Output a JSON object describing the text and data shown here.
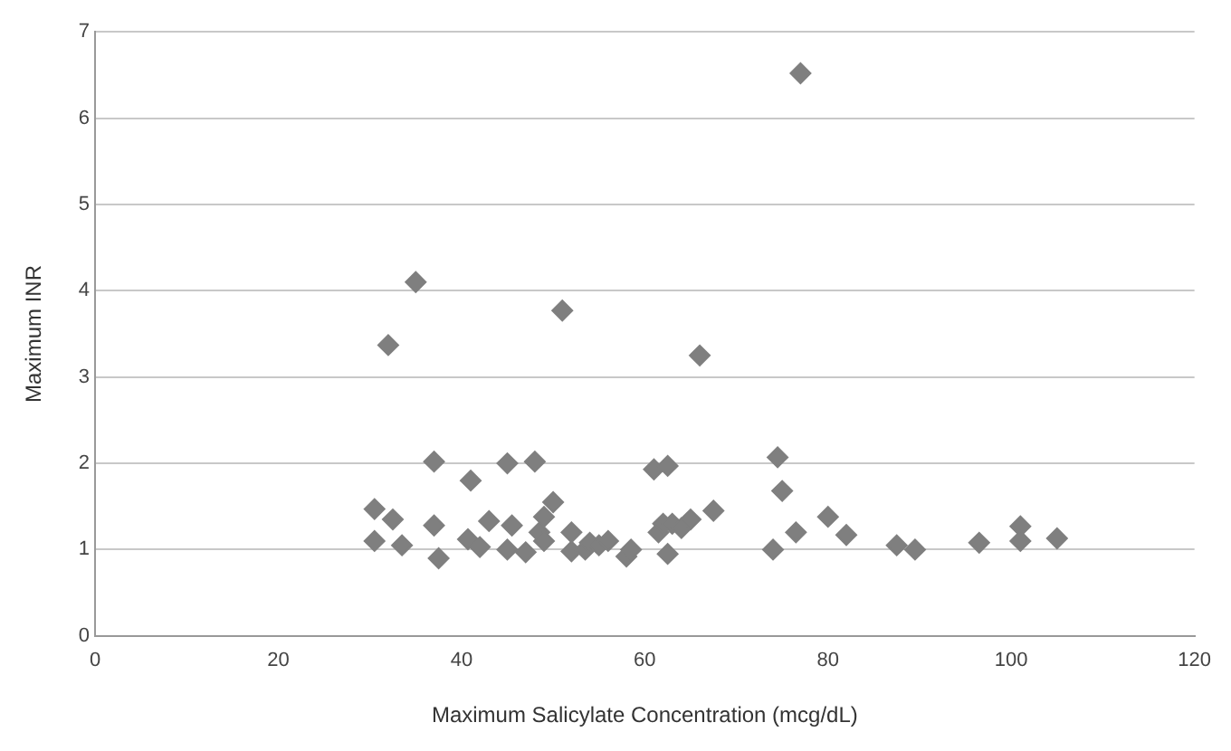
{
  "chart_data": {
    "type": "scatter",
    "xlabel": "Maximum Salicylate Concentration (mcg/dL)",
    "ylabel": "Maximum INR",
    "xlim": [
      0,
      120
    ],
    "xticks": [
      0,
      20,
      40,
      60,
      80,
      100,
      120
    ],
    "ylim": [
      0,
      7
    ],
    "yticks": [
      0,
      1,
      2,
      3,
      4,
      5,
      6,
      7
    ],
    "grid": "y",
    "marker": "diamond",
    "legend": false,
    "series": [
      {
        "color": "#7f7f7f",
        "x": [
          30.5,
          30.5,
          32,
          32.5,
          33.5,
          35,
          37,
          37,
          37.5,
          41,
          40.7,
          42,
          43,
          45,
          45,
          45.5,
          47,
          48,
          48.5,
          49,
          49,
          50,
          51,
          52,
          52,
          53.5,
          54,
          55,
          56,
          58,
          58.5,
          61,
          61.5,
          62,
          62.5,
          62.5,
          63,
          64,
          65,
          66,
          67.5,
          74,
          74.5,
          75,
          76.5,
          77,
          80,
          82,
          87.5,
          89.5,
          96.5,
          101,
          101,
          105
        ],
        "values": [
          1.1,
          1.47,
          3.37,
          1.35,
          1.05,
          4.1,
          2.02,
          1.28,
          0.9,
          1.8,
          1.12,
          1.03,
          1.33,
          2.0,
          1.0,
          1.28,
          0.97,
          2.02,
          1.2,
          1.38,
          1.1,
          1.55,
          3.77,
          0.98,
          1.2,
          1.0,
          1.08,
          1.05,
          1.1,
          0.92,
          1.0,
          1.93,
          1.2,
          1.3,
          1.97,
          0.95,
          1.3,
          1.25,
          1.35,
          3.25,
          1.45,
          1.0,
          2.07,
          1.68,
          1.2,
          6.52,
          1.38,
          1.17,
          1.05,
          1.0,
          1.08,
          1.27,
          1.1,
          1.13
        ]
      }
    ]
  }
}
